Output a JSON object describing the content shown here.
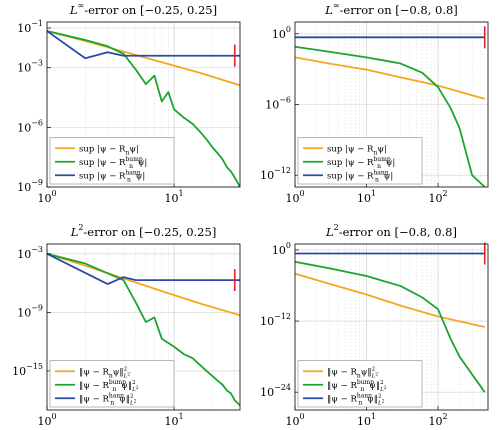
{
  "colors": {
    "orange": "#f5a623",
    "green": "#1aa531",
    "blue": "#2b4aa8",
    "red": "#e0202a"
  },
  "chart_data": [
    {
      "type": "line",
      "title": "L^∞-error on [−0.25, 0.25]",
      "title_parts": {
        "base": "L",
        "sup": "∞",
        "rest": "-error on [−0.25, 0.25]"
      },
      "xscale": "log",
      "yscale": "log",
      "xlim": [
        1,
        33
      ],
      "ylim": [
        1e-09,
        0.2
      ],
      "xticks": [
        {
          "value": 1,
          "label": "10",
          "exp": "0"
        },
        {
          "value": 10,
          "label": "10",
          "exp": "1"
        }
      ],
      "yticks": [
        {
          "value": 0.1,
          "label": "10",
          "exp": "−1"
        },
        {
          "value": 0.001,
          "label": "10",
          "exp": "−3"
        },
        {
          "value": 1e-06,
          "label": "10",
          "exp": "−6"
        },
        {
          "value": 1e-09,
          "label": "10",
          "exp": "−9"
        }
      ],
      "grid": true,
      "legend_position": "bottom-left",
      "vertical_marker": {
        "x": 30,
        "color": "red"
      },
      "series": [
        {
          "name": "sup |ψ − Rₙψ|",
          "legend": {
            "pre": "sup |ψ − R",
            "sub": "n",
            "sup": "",
            "post": "ψ|"
          },
          "color": "orange",
          "x": [
            1,
            2,
            4,
            8,
            16,
            33
          ],
          "y": [
            0.07,
            0.022,
            0.0065,
            0.0019,
            0.00055,
            0.00013
          ]
        },
        {
          "name": "sup |ψ − Rₙ^bump ψ|",
          "legend": {
            "pre": "sup |ψ − R",
            "sub": "n",
            "sup": "bump",
            "post": "ψ|"
          },
          "color": "green",
          "x": [
            1,
            2,
            3,
            4,
            5,
            6,
            7,
            8,
            9,
            10,
            12,
            14,
            16,
            18,
            20,
            22,
            24,
            26,
            28,
            30,
            33
          ],
          "y": [
            0.07,
            0.025,
            0.012,
            0.005,
            0.0008,
            0.00015,
            0.0004,
            2e-05,
            6e-05,
            8e-06,
            3e-06,
            1.5e-06,
            6e-07,
            2.5e-07,
            1e-07,
            5e-08,
            2.5e-08,
            1e-08,
            6e-09,
            3e-09,
            1e-09
          ]
        },
        {
          "name": "sup |ψ − Rₙ^hann ψ|",
          "legend": {
            "pre": "sup |ψ − R",
            "sub": "n",
            "sup": "hann",
            "post": "ψ|"
          },
          "color": "blue",
          "x": [
            1,
            2,
            3,
            4,
            33
          ],
          "y": [
            0.07,
            0.003,
            0.006,
            0.004,
            0.004
          ]
        }
      ]
    },
    {
      "type": "line",
      "title": "L^∞-error on [−0.8, 0.8]",
      "title_parts": {
        "base": "L",
        "sup": "∞",
        "rest": "-error on [−0.8, 0.8]"
      },
      "xscale": "log",
      "yscale": "log",
      "xlim": [
        1,
        500
      ],
      "ylim": [
        1e-13,
        10
      ],
      "xticks": [
        {
          "value": 1,
          "label": "10",
          "exp": "0"
        },
        {
          "value": 10,
          "label": "10",
          "exp": "1"
        },
        {
          "value": 100,
          "label": "10",
          "exp": "2"
        }
      ],
      "yticks": [
        {
          "value": 1,
          "label": "10",
          "exp": "0"
        },
        {
          "value": 1e-06,
          "label": "10",
          "exp": "−6"
        },
        {
          "value": 1e-12,
          "label": "10",
          "exp": "−12"
        }
      ],
      "grid": true,
      "legend_position": "bottom-left",
      "vertical_marker": {
        "x": 450,
        "color": "red"
      },
      "series": [
        {
          "name": "sup |ψ − Rₙψ|",
          "legend": {
            "pre": "sup |ψ − R",
            "sub": "n",
            "sup": "",
            "post": "ψ|"
          },
          "color": "orange",
          "x": [
            1,
            3,
            10,
            30,
            100,
            450
          ],
          "y": [
            0.01,
            0.003,
            0.0009,
            0.0002,
            4e-05,
            3e-06
          ]
        },
        {
          "name": "sup |ψ − Rₙ^bump ψ|",
          "legend": {
            "pre": "sup |ψ − R",
            "sub": "n",
            "sup": "bump",
            "post": "ψ|"
          },
          "color": "green",
          "x": [
            1,
            3,
            10,
            30,
            60,
            100,
            150,
            200,
            300,
            450
          ],
          "y": [
            0.08,
            0.03,
            0.01,
            0.003,
            0.0005,
            3e-05,
            5e-07,
            1e-08,
            1e-12,
            1e-13
          ]
        },
        {
          "name": "sup |ψ − Rₙ^hann ψ|",
          "legend": {
            "pre": "sup |ψ − R",
            "sub": "n",
            "sup": "hann",
            "post": "ψ|"
          },
          "color": "blue",
          "x": [
            1,
            450
          ],
          "y": [
            0.5,
            0.5
          ]
        }
      ]
    },
    {
      "type": "line",
      "title": "L^2-error on [−0.25, 0.25]",
      "title_parts": {
        "base": "L",
        "sup": "2",
        "rest": "-error on [−0.25, 0.25]"
      },
      "xscale": "log",
      "yscale": "log",
      "xlim": [
        1,
        33
      ],
      "ylim": [
        1e-19,
        0.01
      ],
      "xticks": [
        {
          "value": 1,
          "label": "10",
          "exp": "0"
        },
        {
          "value": 10,
          "label": "10",
          "exp": "1"
        }
      ],
      "yticks": [
        {
          "value": 0.001,
          "label": "10",
          "exp": "−3"
        },
        {
          "value": 1e-09,
          "label": "10",
          "exp": "−9"
        },
        {
          "value": 1e-15,
          "label": "10",
          "exp": "−15"
        }
      ],
      "grid": true,
      "legend_position": "bottom-left",
      "vertical_marker": {
        "x": 30,
        "color": "red"
      },
      "series": [
        {
          "name": "‖ψ − Rₙψ‖²_L²",
          "legend": {
            "pre": "‖ψ − R",
            "sub": "n",
            "sup": "",
            "post": "ψ‖",
            "norm": true
          },
          "color": "orange",
          "x": [
            1,
            2,
            4,
            8,
            16,
            33
          ],
          "y": [
            0.001,
            6e-05,
            3e-06,
            1.5e-07,
            8e-09,
            5e-10
          ]
        },
        {
          "name": "‖ψ − Rₙ^bump ψ‖²_L²",
          "legend": {
            "pre": "‖ψ − R",
            "sub": "n",
            "sup": "bump",
            "post": "ψ‖",
            "norm": true
          },
          "color": "green",
          "x": [
            1,
            2,
            3,
            4,
            5,
            6,
            7,
            8,
            10,
            12,
            14,
            16,
            18,
            20,
            22,
            24,
            26,
            28,
            30,
            33
          ],
          "y": [
            0.001,
            0.0001,
            1e-05,
            2e-06,
            1e-08,
            1e-10,
            3e-10,
            2e-12,
            3e-13,
            5e-14,
            2e-14,
            4e-15,
            1e-15,
            3e-16,
            1e-16,
            4e-17,
            1e-17,
            5e-18,
            1e-18,
            3e-19
          ]
        },
        {
          "name": "‖ψ − Rₙ^hann ψ‖²_L²",
          "legend": {
            "pre": "‖ψ − R",
            "sub": "n",
            "sup": "hann",
            "post": "ψ‖",
            "norm": true
          },
          "color": "blue",
          "x": [
            1,
            3,
            4,
            5,
            33
          ],
          "y": [
            0.001,
            8e-07,
            4e-06,
            2e-06,
            2e-06
          ]
        }
      ]
    },
    {
      "type": "line",
      "title": "L^2-error on [−0.8, 0.8]",
      "title_parts": {
        "base": "L",
        "sup": "2",
        "rest": "-error on [−0.8, 0.8]"
      },
      "xscale": "log",
      "yscale": "log",
      "xlim": [
        1,
        500
      ],
      "ylim": [
        1e-27,
        10
      ],
      "xticks": [
        {
          "value": 1,
          "label": "10",
          "exp": "0"
        },
        {
          "value": 10,
          "label": "10",
          "exp": "1"
        },
        {
          "value": 100,
          "label": "10",
          "exp": "2"
        }
      ],
      "yticks": [
        {
          "value": 1,
          "label": "10",
          "exp": "0"
        },
        {
          "value": 1e-12,
          "label": "10",
          "exp": "−12"
        },
        {
          "value": 1e-24,
          "label": "10",
          "exp": "−24"
        }
      ],
      "grid": true,
      "legend_position": "bottom-left",
      "vertical_marker": {
        "x": 450,
        "color": "red"
      },
      "series": [
        {
          "name": "‖ψ − Rₙψ‖²_L²",
          "legend": {
            "pre": "‖ψ − R",
            "sub": "n",
            "sup": "",
            "post": "ψ‖",
            "norm": true
          },
          "color": "orange",
          "x": [
            1,
            3,
            10,
            30,
            100,
            450
          ],
          "y": [
            0.0001,
            2e-06,
            3e-08,
            4e-10,
            6e-12,
            1e-13
          ]
        },
        {
          "name": "‖ψ − Rₙ^bump ψ‖²_L²",
          "legend": {
            "pre": "‖ψ − R",
            "sub": "n",
            "sup": "bump",
            "post": "ψ‖",
            "norm": true
          },
          "color": "green",
          "x": [
            1,
            3,
            10,
            30,
            60,
            100,
            150,
            200,
            300,
            450
          ],
          "y": [
            0.01,
            0.0008,
            4e-05,
            8e-07,
            1e-08,
            1e-10,
            1e-15,
            1e-18,
            1e-21,
            1e-24
          ]
        },
        {
          "name": "‖ψ − Rₙ^hann ψ‖²_L²",
          "legend": {
            "pre": "‖ψ − R",
            "sub": "n",
            "sup": "hann",
            "post": "ψ‖",
            "norm": true
          },
          "color": "blue",
          "x": [
            1,
            450
          ],
          "y": [
            0.25,
            0.25
          ]
        }
      ]
    }
  ]
}
